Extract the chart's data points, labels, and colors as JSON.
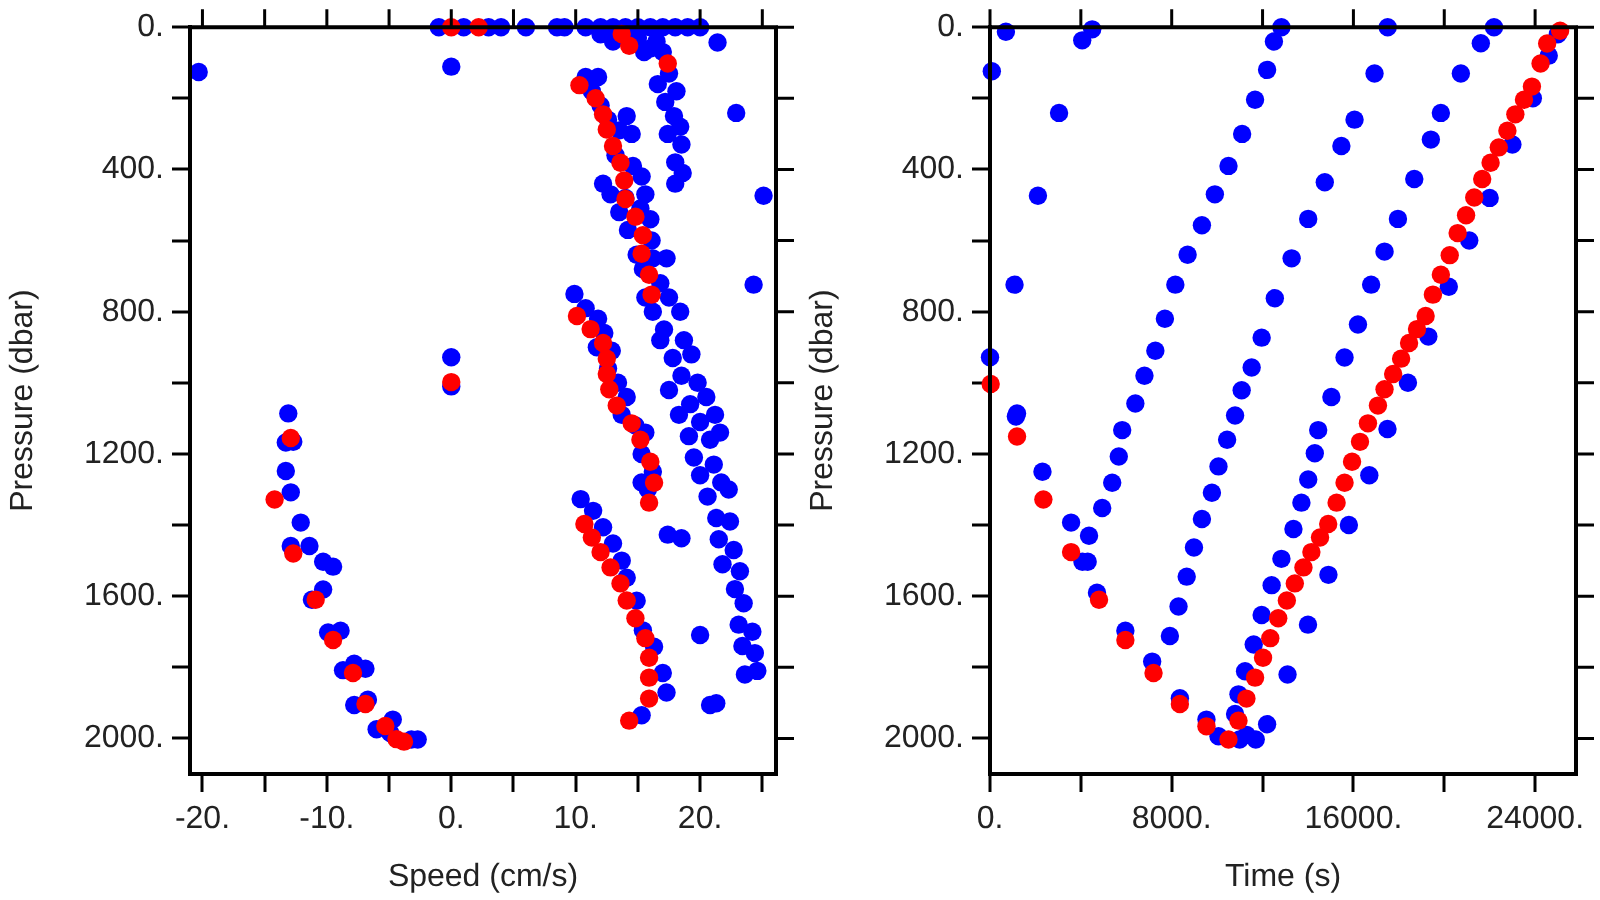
{
  "chart_data": [
    {
      "type": "scatter",
      "xlabel": "Speed (cm/s)",
      "ylabel": "Pressure (dbar)",
      "marker": "circle",
      "xlim": [
        -21,
        26.1
      ],
      "ylim": [
        2100,
        0
      ],
      "xticks": [
        {
          "value": -20,
          "label": "-20."
        },
        {
          "value": -15,
          "label": null
        },
        {
          "value": -10,
          "label": "-10."
        },
        {
          "value": -5,
          "label": null
        },
        {
          "value": 0,
          "label": "0."
        },
        {
          "value": 5,
          "label": null
        },
        {
          "value": 10,
          "label": "10."
        },
        {
          "value": 15,
          "label": null
        },
        {
          "value": 20,
          "label": "20."
        },
        {
          "value": 25,
          "label": null
        }
      ],
      "yticks": [
        {
          "value": 0,
          "label": "0."
        },
        {
          "value": 200,
          "label": null
        },
        {
          "value": 400,
          "label": "400."
        },
        {
          "value": 600,
          "label": null
        },
        {
          "value": 800,
          "label": "800."
        },
        {
          "value": 1000,
          "label": null
        },
        {
          "value": 1200,
          "label": "1200."
        },
        {
          "value": 1400,
          "label": null
        },
        {
          "value": 1600,
          "label": "1600."
        },
        {
          "value": 1800,
          "label": null
        },
        {
          "value": 2000,
          "label": "2000."
        }
      ],
      "series": [
        {
          "color": "#0000ff",
          "x": [
            -20.3,
            -1,
            1,
            3,
            4,
            6,
            8.5,
            9.1,
            10.8,
            12,
            13,
            14,
            15,
            16,
            17,
            18,
            19,
            20,
            0,
            21.4,
            22.9,
            25.1,
            24.3,
            0,
            0,
            12,
            13,
            15,
            16.5,
            17,
            15.5,
            16,
            17.5,
            16.6,
            18.1,
            17.2,
            17.9,
            18.4,
            17.4,
            18.5,
            18,
            18.6,
            18,
            10.8,
            11.8,
            11.3,
            12,
            12.6,
            13.5,
            14.1,
            14.5,
            13.2,
            14.6,
            15.3,
            12.2,
            12.8,
            14,
            15.6,
            13.5,
            15.2,
            16,
            14.2,
            16.1,
            14.9,
            16.2,
            15.4,
            17.3,
            16.8,
            15.6,
            17.5,
            16.2,
            18.4,
            17.1,
            18.7,
            16.8,
            17.8,
            19.3,
            18.5,
            19.8,
            17.5,
            19.2,
            20.5,
            18.3,
            20,
            21.2,
            19.1,
            20.8,
            21.6,
            19.5,
            21.1,
            20,
            21.7,
            20.6,
            22.3,
            21.3,
            22.4,
            21.5,
            22.7,
            21.8,
            23.2,
            22.8,
            23.5,
            23.1,
            24.2,
            23.4,
            24.4,
            23.6,
            24.6,
            9.9,
            10.8,
            11.8,
            12.3,
            11.7,
            12.9,
            12.6,
            13.4,
            14.1,
            13.7,
            14.8,
            15.6,
            15.3,
            16.2,
            15.8,
            15.3,
            10.4,
            11.4,
            12.2,
            13,
            13.7,
            14.1,
            14.9,
            15.4,
            16.3,
            17,
            17.3,
            15.3,
            17.4,
            18.5,
            20,
            21.3,
            20.8,
            -13.1,
            -12.7,
            -13.3,
            -12.9,
            -12.1,
            -12.9,
            -11.4,
            -10.3,
            -9.5,
            -10.3,
            -11.2,
            -9.9,
            -8.9,
            -8.7,
            -6.9,
            -7.8,
            -7.8,
            -6.7,
            -6,
            -4.7,
            -4.9,
            -2.7,
            -3.2,
            -13.3
          ],
          "values": [
            126,
            0,
            0,
            0,
            0,
            0,
            0,
            0,
            0,
            0,
            0,
            0,
            0,
            0,
            0,
            0,
            0,
            0,
            111,
            43,
            241,
            474,
            724,
            928,
            1010,
            20,
            40,
            30,
            40,
            70,
            70,
            60,
            130,
            160,
            180,
            210,
            250,
            280,
            300,
            330,
            380,
            410,
            440,
            140,
            140,
            180,
            220,
            260,
            290,
            250,
            300,
            360,
            390,
            420,
            440,
            470,
            480,
            470,
            520,
            510,
            540,
            570,
            600,
            640,
            650,
            680,
            650,
            720,
            760,
            760,
            800,
            800,
            850,
            880,
            880,
            930,
            920,
            980,
            1000,
            1020,
            1060,
            1040,
            1090,
            1110,
            1090,
            1150,
            1160,
            1140,
            1210,
            1230,
            1260,
            1280,
            1320,
            1300,
            1380,
            1390,
            1440,
            1470,
            1510,
            1530,
            1580,
            1620,
            1680,
            1700,
            1740,
            1760,
            1820,
            1810,
            750,
            790,
            820,
            860,
            900,
            910,
            960,
            1000,
            1040,
            1090,
            1120,
            1140,
            1200,
            1250,
            1300,
            1280,
            1327,
            1360,
            1406,
            1452,
            1500,
            1548,
            1613,
            1696,
            1742,
            1816,
            1871,
            1935,
            1427,
            1437,
            1709,
            1901,
            1906,
            1086,
            1166,
            1248,
            1308,
            1393,
            1459,
            1459,
            1503,
            1517,
            1581,
            1610,
            1702,
            1697,
            1808,
            1804,
            1790,
            1906,
            1891,
            1974,
            1947,
            1985,
            2003,
            2003,
            1168
          ]
        },
        {
          "color": "#ff0000",
          "x": [
            0,
            2.2,
            13.7,
            14.3,
            17.4,
            0,
            10.3,
            11.6,
            12.2,
            12.5,
            13,
            13.6,
            13.9,
            14,
            14.8,
            15.4,
            15.3,
            15.9,
            16.1,
            10.1,
            11.2,
            12.2,
            12.5,
            12.5,
            12.7,
            13.3,
            14.5,
            15.2,
            16,
            16.3,
            15.9,
            10.7,
            11.3,
            12,
            12.8,
            13.6,
            14.1,
            14.8,
            15.6,
            15.9,
            15.9,
            15.9,
            14.3,
            -12.9,
            -14.2,
            -12.7,
            -10.9,
            -9.5,
            -7.9,
            -6.9,
            -5.3,
            -4.4,
            -3.8
          ],
          "values": [
            0,
            0,
            19,
            52,
            102,
            998,
            163,
            200,
            245,
            288,
            334,
            381,
            431,
            483,
            533,
            585,
            637,
            696,
            752,
            812,
            849,
            888,
            932,
            975,
            1018,
            1064,
            1114,
            1160,
            1222,
            1281,
            1337,
            1397,
            1435,
            1476,
            1519,
            1564,
            1612,
            1662,
            1718,
            1773,
            1829,
            1888,
            1950,
            1155,
            1328,
            1480,
            1610,
            1723,
            1816,
            1903,
            1965,
            2002,
            2009
          ]
        }
      ]
    },
    {
      "type": "scatter",
      "xlabel": "Time (s)",
      "ylabel": "Pressure (dbar)",
      "marker": "circle",
      "xlim": [
        0,
        25800
      ],
      "ylim": [
        2100,
        0
      ],
      "xticks": [
        {
          "value": 0,
          "label": "0."
        },
        {
          "value": 4000,
          "label": null
        },
        {
          "value": 8000,
          "label": "8000."
        },
        {
          "value": 12000,
          "label": null
        },
        {
          "value": 16000,
          "label": "16000."
        },
        {
          "value": 20000,
          "label": null
        },
        {
          "value": 24000,
          "label": "24000."
        }
      ],
      "yticks": [
        {
          "value": 0,
          "label": "0."
        },
        {
          "value": 200,
          "label": null
        },
        {
          "value": 400,
          "label": "400."
        },
        {
          "value": 600,
          "label": null
        },
        {
          "value": 800,
          "label": "800."
        },
        {
          "value": 1000,
          "label": null
        },
        {
          "value": 1200,
          "label": "1200."
        },
        {
          "value": 1400,
          "label": null
        },
        {
          "value": 1600,
          "label": "1600."
        },
        {
          "value": 1800,
          "label": null
        },
        {
          "value": 2000,
          "label": "2000."
        }
      ],
      "series": [
        {
          "color": "#0000ff",
          "x": [
            0,
            80,
            700,
            4060,
            4500,
            3040,
            2110,
            1080,
            1190,
            1140,
            2310,
            3570,
            4070,
            4710,
            5960,
            7140,
            8360,
            9530,
            10060,
            10990,
            12830,
            12500,
            12200,
            11670,
            11100,
            10500,
            9900,
            9330,
            8700,
            8160,
            7700,
            7280,
            6800,
            6400,
            5820,
            5670,
            5380,
            4940,
            4360,
            4300,
            17510,
            16930,
            16050,
            15470,
            14740,
            14010,
            13280,
            12540,
            11960,
            11520,
            11080,
            10790,
            10440,
            10060,
            9770,
            9330,
            8980,
            8660,
            8300,
            7920,
            22190,
            21610,
            20730,
            19850,
            19410,
            18680,
            17960,
            17370,
            16780,
            16200,
            15610,
            15030,
            14450,
            14300,
            14010,
            13710,
            13360,
            12830,
            12400,
            11960,
            11610,
            11230,
            10940,
            10790,
            25000,
            24600,
            23900,
            23000,
            22000,
            21100,
            20200,
            19300,
            18400,
            17500,
            16700,
            15800,
            14900,
            14000,
            13100,
            12200,
            11700,
            11300
          ],
          "values": [
            928,
            124,
            13,
            37,
            6,
            241,
            474,
            724,
            1086,
            1095,
            1250,
            1393,
            1503,
            1590,
            1697,
            1784,
            1887,
            1947,
            1994,
            2003,
            0,
            40,
            120,
            204,
            300,
            390,
            470,
            557,
            640,
            724,
            820,
            910,
            980,
            1058,
            1133,
            1207,
            1281,
            1352,
            1430,
            1503,
            0,
            130,
            260,
            334,
            436,
            539,
            650,
            762,
            873,
            957,
            1021,
            1092,
            1160,
            1235,
            1309,
            1383,
            1463,
            1545,
            1629,
            1712,
            0,
            45,
            130,
            241,
            316,
            427,
            539,
            631,
            724,
            836,
            929,
            1040,
            1133,
            1198,
            1272,
            1337,
            1411,
            1495,
            1569,
            1653,
            1736,
            1811,
            1876,
            1931,
            20,
            80,
            200,
            330,
            480,
            600,
            730,
            870,
            1000,
            1130,
            1260,
            1400,
            1540,
            1680,
            1820,
            1960,
            2003,
            1990
          ]
        },
        {
          "color": "#ff0000",
          "x": [
            30,
            1190,
            2350,
            3570,
            4800,
            5960,
            7200,
            8360,
            9530,
            10500,
            25100,
            24530,
            24240,
            23860,
            23510,
            23130,
            22780,
            22400,
            22040,
            21670,
            21320,
            20960,
            20590,
            20240,
            19850,
            19500,
            19180,
            18800,
            18450,
            18100,
            17750,
            17370,
            17080,
            16640,
            16290,
            15940,
            15610,
            15260,
            14890,
            14530,
            14150,
            13800,
            13420,
            13070,
            12690,
            12340,
            12020,
            11670,
            11290,
            10940
          ],
          "values": [
            1003,
            1151,
            1328,
            1476,
            1610,
            1723,
            1816,
            1903,
            1966,
            2003,
            10,
            46,
            102,
            167,
            204,
            245,
            291,
            338,
            381,
            427,
            479,
            529,
            579,
            641,
            696,
            752,
            812,
            849,
            888,
            932,
            975,
            1018,
            1064,
            1114,
            1166,
            1222,
            1281,
            1337,
            1397,
            1435,
            1476,
            1519,
            1564,
            1612,
            1662,
            1718,
            1773,
            1829,
            1888,
            1950
          ]
        }
      ]
    }
  ]
}
